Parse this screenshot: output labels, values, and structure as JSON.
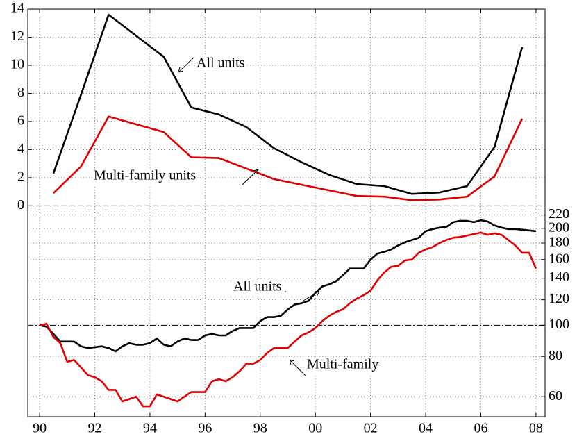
{
  "chart_data": {
    "type": "line",
    "xlim": [
      1989.57,
      2008.33
    ],
    "xticks": [
      {
        "value": 1990,
        "label": "90"
      },
      {
        "value": 1992,
        "label": "92"
      },
      {
        "value": 1994,
        "label": "94"
      },
      {
        "value": 1996,
        "label": "96"
      },
      {
        "value": 1998,
        "label": "98"
      },
      {
        "value": 2000,
        "label": "00"
      },
      {
        "value": 2002,
        "label": "02"
      },
      {
        "value": 2004,
        "label": "04"
      },
      {
        "value": 2006,
        "label": "06"
      },
      {
        "value": 2008,
        "label": "08"
      }
    ],
    "ylim": [
      -15,
      14
    ],
    "yticks": [
      0,
      2,
      4,
      6,
      8,
      10,
      12,
      14
    ],
    "y2lim": [
      52,
      960
    ],
    "y2log": true,
    "y2ticks": [
      60,
      80,
      100,
      120,
      140,
      160,
      180,
      200,
      220
    ],
    "grid": true,
    "reference_lines": [
      {
        "value": 0,
        "axis": "y"
      },
      {
        "value": 100,
        "axis": "y2"
      }
    ],
    "annotations": [
      "All units",
      "Multi-family units",
      "All units",
      "Multi-family"
    ],
    "series": [
      {
        "color": "#000000",
        "axis": "y",
        "x": [
          1990.5,
          1991.5,
          1992.5,
          1993.5,
          1994.5,
          1995.5,
          1996.5,
          1997.5,
          1998.5,
          1999.5,
          2000.5,
          2001.5,
          2002.5,
          2003.5,
          2004.5,
          2005.5,
          2006.5,
          2007.5
        ],
        "values": [
          2.3,
          7.9,
          13.6,
          12.1,
          10.6,
          7.0,
          6.5,
          5.6,
          4.1,
          3.1,
          2.2,
          1.55,
          1.4,
          0.85,
          0.95,
          1.4,
          4.2,
          11.3
        ]
      },
      {
        "color": "#e00000",
        "axis": "y",
        "x": [
          1990.5,
          1991.5,
          1992.5,
          1993.5,
          1994.5,
          1995.5,
          1996.5,
          1997.5,
          1998.5,
          1999.5,
          2000.5,
          2001.5,
          2002.5,
          2003.5,
          2004.5,
          2005.5,
          2006.5,
          2007.5
        ],
        "values": [
          0.9,
          2.8,
          6.35,
          5.8,
          5.25,
          3.45,
          3.4,
          2.65,
          1.9,
          1.5,
          1.1,
          0.7,
          0.65,
          0.4,
          0.45,
          0.65,
          2.1,
          6.2
        ]
      },
      {
        "color": "#000000",
        "axis": "y2",
        "x": [
          1990,
          1990.25,
          1990.5,
          1990.75,
          1991,
          1991.25,
          1991.5,
          1991.75,
          1992,
          1992.25,
          1992.5,
          1992.75,
          1993,
          1993.25,
          1993.5,
          1993.75,
          1994,
          1994.25,
          1994.5,
          1994.75,
          1995,
          1995.25,
          1995.5,
          1995.75,
          1996,
          1996.25,
          1996.5,
          1996.75,
          1997,
          1997.25,
          1997.5,
          1997.75,
          1998,
          1998.25,
          1998.5,
          1998.75,
          1999,
          1999.25,
          1999.5,
          1999.75,
          2000,
          2000.25,
          2000.5,
          2000.75,
          2001,
          2001.25,
          2001.5,
          2001.75,
          2002,
          2002.25,
          2002.5,
          2002.75,
          2003,
          2003.25,
          2003.5,
          2003.75,
          2004,
          2004.25,
          2004.5,
          2004.75,
          2005,
          2005.25,
          2005.5,
          2005.75,
          2006,
          2006.25,
          2006.5,
          2006.75,
          2007,
          2007.25,
          2007.5,
          2007.75,
          2008
        ],
        "values": [
          100,
          99,
          94,
          89,
          89,
          89,
          86,
          85,
          85.5,
          86,
          85,
          83,
          86,
          88,
          87,
          87,
          88,
          91,
          87,
          86,
          89,
          91,
          90,
          90,
          93,
          94,
          93,
          93,
          96,
          98,
          98,
          98,
          103,
          106,
          106,
          107,
          112,
          116,
          117,
          119,
          126,
          132,
          134,
          137,
          143,
          150,
          150,
          150,
          160,
          167,
          169,
          172,
          177,
          181,
          184,
          187,
          196,
          199,
          201,
          202,
          209,
          211,
          211,
          209,
          212,
          210,
          204,
          201,
          199,
          199,
          198,
          197,
          196
        ]
      },
      {
        "color": "#e00000",
        "axis": "y2",
        "x": [
          1990,
          1990.25,
          1990.5,
          1990.75,
          1991,
          1991.25,
          1991.5,
          1991.75,
          1992,
          1992.25,
          1992.5,
          1992.75,
          1993,
          1993.25,
          1993.5,
          1993.75,
          1994,
          1994.25,
          1994.5,
          1994.75,
          1995,
          1995.25,
          1995.5,
          1995.75,
          1996,
          1996.25,
          1996.5,
          1996.75,
          1997,
          1997.25,
          1997.5,
          1997.75,
          1998,
          1998.25,
          1998.5,
          1998.75,
          1999,
          1999.25,
          1999.5,
          1999.75,
          2000,
          2000.25,
          2000.5,
          2000.75,
          2001,
          2001.25,
          2001.5,
          2001.75,
          2002,
          2002.25,
          2002.5,
          2002.75,
          2003,
          2003.25,
          2003.5,
          2003.75,
          2004,
          2004.25,
          2004.5,
          2004.75,
          2005,
          2005.25,
          2005.5,
          2005.75,
          2006,
          2006.25,
          2006.5,
          2006.75,
          2007,
          2007.25,
          2007.5,
          2007.75,
          2008
        ],
        "values": [
          100,
          101,
          92,
          88,
          77,
          78,
          74,
          70,
          69,
          67,
          63,
          63,
          58,
          59,
          60,
          56,
          56,
          61,
          60,
          59,
          58,
          60,
          62,
          62,
          62,
          67,
          68,
          67,
          69,
          72,
          76,
          76,
          78,
          82,
          85,
          85,
          85,
          89,
          93,
          95,
          98,
          103,
          107,
          110,
          112,
          117,
          121,
          124,
          128,
          138,
          146,
          152,
          153,
          159,
          160,
          168,
          172,
          175,
          180,
          184,
          187,
          188,
          190,
          192,
          194,
          191,
          193,
          191,
          184,
          177,
          168,
          168,
          150
        ]
      }
    ]
  }
}
